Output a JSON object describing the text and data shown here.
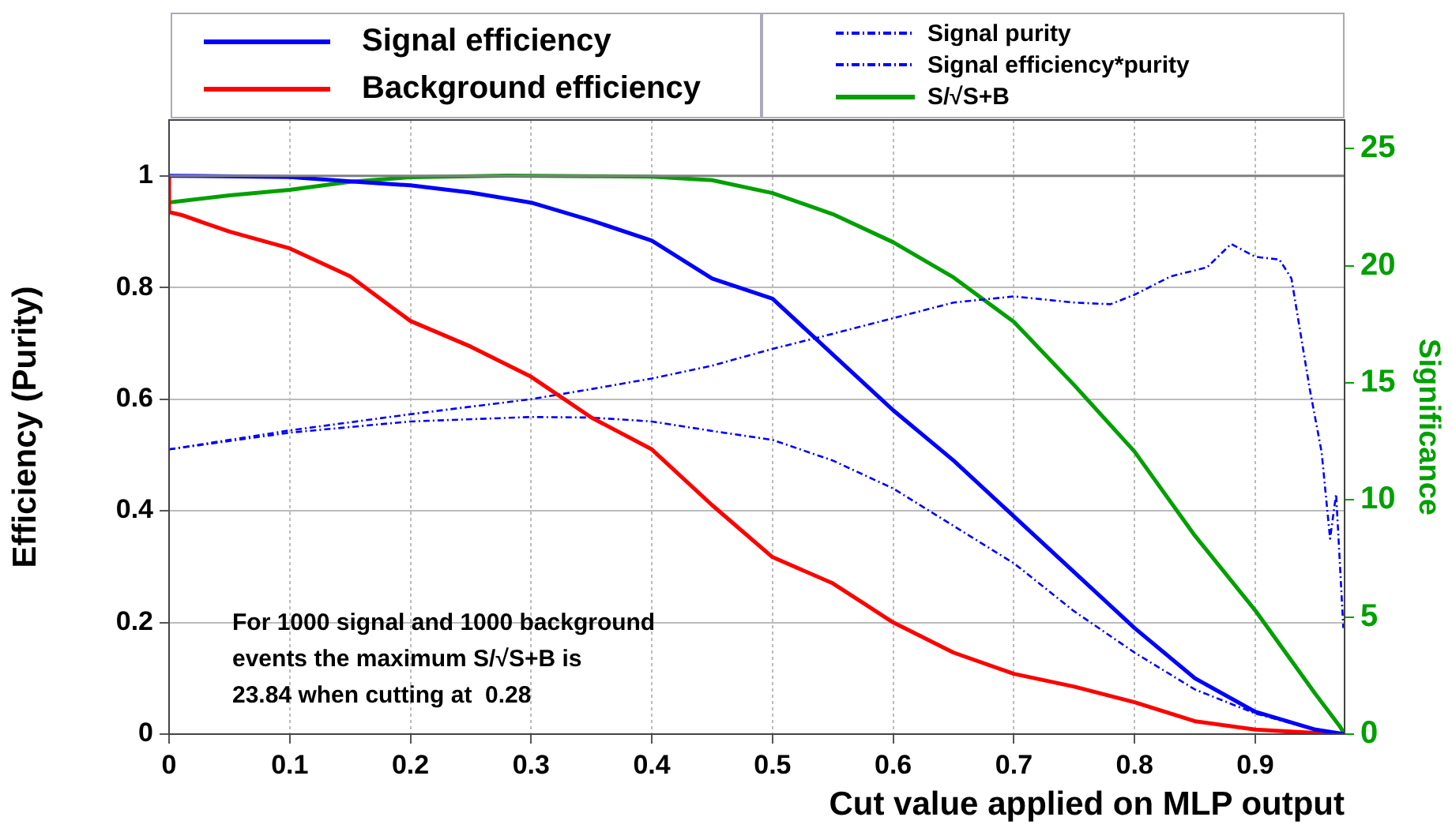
{
  "chart_data": {
    "type": "line",
    "xlabel": "Cut value applied on MLP output",
    "ylabel": "Efficiency (Purity)",
    "y2label": "Significance",
    "xlim": [
      0,
      0.974
    ],
    "xticks": [
      0,
      0.1,
      0.2,
      0.3,
      0.4,
      0.5,
      0.6,
      0.7,
      0.8,
      0.9
    ],
    "ylim": [
      0,
      1.1
    ],
    "yticks": [
      0,
      0.2,
      0.4,
      0.6,
      0.8,
      1
    ],
    "y2lim": [
      0,
      26.22
    ],
    "y2ticks": [
      0,
      5,
      10,
      15,
      20,
      25
    ],
    "grid": true,
    "legend": "top",
    "marker": "none",
    "ref_lines": [
      {
        "axis": "y",
        "value": 1,
        "color": "#808080"
      }
    ],
    "annotations": [
      "For 1000 signal and 1000 background",
      "events the maximum S/√S+B is",
      "23.84 when cutting at  0.28"
    ],
    "series": [
      {
        "name": "Signal efficiency",
        "color": "#0000ff",
        "line_style": "solid",
        "x": [
          0,
          0.1,
          0.15,
          0.2,
          0.25,
          0.3,
          0.35,
          0.4,
          0.45,
          0.5,
          0.55,
          0.6,
          0.65,
          0.7,
          0.75,
          0.8,
          0.85,
          0.9,
          0.95,
          0.974
        ],
        "values": [
          1.0,
          0.998,
          0.99,
          0.983,
          0.97,
          0.952,
          0.92,
          0.884,
          0.816,
          0.78,
          0.68,
          0.58,
          0.49,
          0.39,
          0.29,
          0.19,
          0.1,
          0.04,
          0.008,
          0
        ]
      },
      {
        "name": "Background efficiency",
        "color": "#ff0000",
        "line_style": "solid",
        "x": [
          0,
          0,
          0.01,
          0.05,
          0.1,
          0.15,
          0.2,
          0.25,
          0.3,
          0.35,
          0.4,
          0.45,
          0.5,
          0.55,
          0.6,
          0.65,
          0.7,
          0.75,
          0.8,
          0.85,
          0.9,
          0.95,
          0.974
        ],
        "values": [
          1.0,
          0.935,
          0.93,
          0.9,
          0.87,
          0.82,
          0.74,
          0.694,
          0.64,
          0.567,
          0.51,
          0.41,
          0.317,
          0.27,
          0.2,
          0.146,
          0.108,
          0.085,
          0.057,
          0.023,
          0.008,
          0.002,
          0
        ]
      },
      {
        "name": "Signal purity",
        "color": "#0000ff",
        "line_style": "dashed",
        "x": [
          0,
          0.1,
          0.2,
          0.3,
          0.35,
          0.4,
          0.45,
          0.5,
          0.55,
          0.6,
          0.65,
          0.7,
          0.75,
          0.78,
          0.8,
          0.83,
          0.86,
          0.88,
          0.9,
          0.92,
          0.93,
          0.945,
          0.955,
          0.962,
          0.967,
          0.973
        ],
        "values": [
          0.51,
          0.544,
          0.573,
          0.6,
          0.618,
          0.637,
          0.66,
          0.69,
          0.717,
          0.745,
          0.773,
          0.784,
          0.773,
          0.77,
          0.787,
          0.82,
          0.836,
          0.878,
          0.855,
          0.85,
          0.816,
          0.62,
          0.505,
          0.35,
          0.43,
          0.19
        ]
      },
      {
        "name": "Signal efficiency*purity",
        "color": "#0000ff",
        "line_style": "dashed",
        "x": [
          0,
          0.1,
          0.2,
          0.3,
          0.35,
          0.4,
          0.45,
          0.5,
          0.55,
          0.6,
          0.65,
          0.7,
          0.75,
          0.8,
          0.85,
          0.9,
          0.95,
          0.97
        ],
        "values": [
          0.51,
          0.54,
          0.56,
          0.568,
          0.567,
          0.56,
          0.543,
          0.527,
          0.49,
          0.44,
          0.373,
          0.306,
          0.22,
          0.146,
          0.08,
          0.037,
          0.008,
          0.001
        ]
      },
      {
        "name": "S/√S+B",
        "color": "#00a000",
        "line_style": "solid",
        "axis": "y2",
        "x": [
          0,
          0.05,
          0.1,
          0.15,
          0.2,
          0.28,
          0.35,
          0.4,
          0.45,
          0.5,
          0.55,
          0.6,
          0.65,
          0.7,
          0.75,
          0.8,
          0.85,
          0.9,
          0.95,
          0.97,
          0.974
        ],
        "values": [
          22.7,
          23.0,
          23.24,
          23.58,
          23.78,
          23.84,
          23.82,
          23.8,
          23.65,
          23.1,
          22.2,
          21.0,
          19.5,
          17.6,
          14.9,
          12.06,
          8.47,
          5.28,
          1.7,
          0.34,
          0
        ]
      }
    ]
  }
}
